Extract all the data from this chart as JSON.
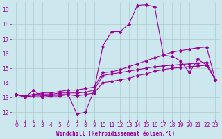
{
  "background_color": "#cce8ee",
  "grid_color": "#aacccc",
  "line_color": "#990099",
  "xlabel": "Windchill (Refroidissement éolien,°C)",
  "xlim": [
    -0.5,
    23.5
  ],
  "ylim": [
    11.5,
    19.5
  ],
  "yticks": [
    12,
    13,
    14,
    15,
    16,
    17,
    18,
    19
  ],
  "xticks": [
    0,
    1,
    2,
    3,
    4,
    5,
    6,
    7,
    8,
    9,
    10,
    11,
    12,
    13,
    14,
    15,
    16,
    17,
    18,
    19,
    20,
    21,
    22,
    23
  ],
  "series": [
    [
      13.2,
      13.0,
      13.5,
      13.0,
      13.1,
      13.1,
      13.2,
      11.85,
      12.0,
      13.5,
      16.5,
      17.5,
      17.5,
      18.0,
      19.3,
      19.35,
      19.2,
      15.9,
      15.8,
      15.5,
      14.7,
      15.6,
      15.2,
      14.2
    ],
    [
      13.2,
      13.1,
      13.2,
      13.2,
      13.2,
      13.3,
      13.3,
      13.3,
      13.35,
      13.5,
      14.5,
      14.6,
      14.7,
      14.8,
      14.9,
      15.0,
      15.1,
      15.15,
      15.2,
      15.25,
      15.3,
      15.35,
      15.4,
      14.2
    ],
    [
      13.2,
      13.1,
      13.2,
      13.3,
      13.3,
      13.4,
      13.5,
      13.5,
      13.6,
      13.7,
      14.7,
      14.75,
      14.9,
      15.1,
      15.3,
      15.5,
      15.7,
      15.9,
      16.1,
      16.2,
      16.3,
      16.4,
      16.45,
      14.2
    ],
    [
      13.2,
      13.05,
      13.1,
      13.1,
      13.15,
      13.2,
      13.2,
      13.1,
      13.2,
      13.3,
      14.0,
      14.1,
      14.2,
      14.3,
      14.5,
      14.6,
      14.8,
      14.9,
      15.0,
      15.05,
      15.1,
      15.15,
      15.2,
      14.2
    ]
  ]
}
